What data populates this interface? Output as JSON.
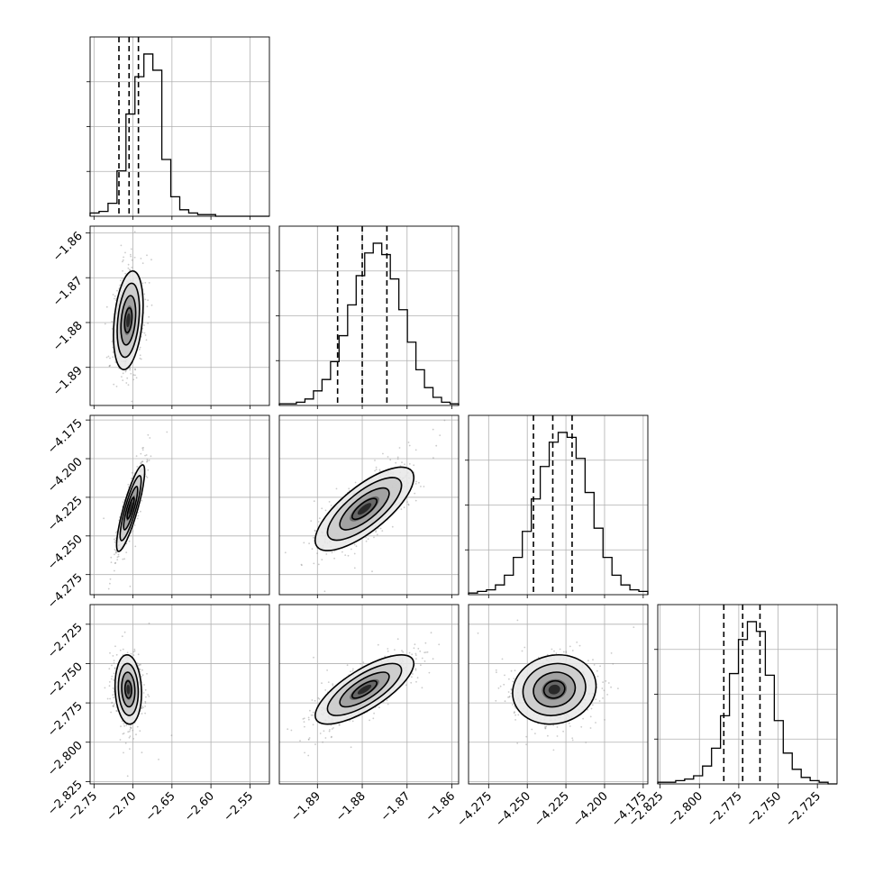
{
  "chart_data": {
    "type": "corner",
    "variables": [
      {
        "range": [
          -2.755,
          -2.525
        ],
        "ticks": [
          -2.75,
          -2.7,
          -2.65,
          -2.6,
          -2.55
        ],
        "tick_labels": [
          "−2.75",
          "−2.70",
          "−2.65",
          "−2.60",
          "−2.55"
        ],
        "quantiles": [
          -2.718,
          -2.705,
          -2.693
        ]
      },
      {
        "range": [
          -1.8985,
          -1.8585
        ],
        "ticks": [
          -1.89,
          -1.88,
          -1.87,
          -1.86
        ],
        "tick_labels": [
          "−1.89",
          "−1.88",
          "−1.87",
          "−1.86"
        ],
        "quantiles": [
          -1.8855,
          -1.88,
          -1.8745
        ]
      },
      {
        "range": [
          -4.288,
          -4.172
        ],
        "ticks": [
          -4.275,
          -4.25,
          -4.225,
          -4.2,
          -4.175
        ],
        "tick_labels": [
          "−4.275",
          "−4.250",
          "−4.225",
          "−4.200",
          "−4.175"
        ],
        "quantiles": [
          -4.246,
          -4.2335,
          -4.221
        ]
      },
      {
        "range": [
          -2.8265,
          -2.7125
        ],
        "ticks": [
          -2.825,
          -2.8,
          -2.775,
          -2.75,
          -2.725
        ],
        "tick_labels": [
          "−2.825",
          "−2.800",
          "−2.775",
          "−2.750",
          "−2.725"
        ],
        "quantiles": [
          -2.7845,
          -2.7725,
          -2.7615
        ]
      }
    ],
    "histograms": [
      [
        0.02,
        0.03,
        0.08,
        0.28,
        0.63,
        0.86,
        1.0,
        0.9,
        0.35,
        0.12,
        0.04,
        0.02,
        0.01,
        0.01,
        0,
        0,
        0,
        0,
        0,
        0
      ],
      [
        0.01,
        0.01,
        0.02,
        0.04,
        0.09,
        0.16,
        0.27,
        0.43,
        0.62,
        0.8,
        0.94,
        1.0,
        0.93,
        0.78,
        0.59,
        0.39,
        0.22,
        0.11,
        0.05,
        0.02,
        0.01
      ],
      [
        0.01,
        0.02,
        0.03,
        0.06,
        0.12,
        0.23,
        0.39,
        0.59,
        0.79,
        0.94,
        1.0,
        0.97,
        0.84,
        0.63,
        0.41,
        0.23,
        0.12,
        0.06,
        0.03,
        0.02
      ],
      [
        0.01,
        0.01,
        0.02,
        0.03,
        0.05,
        0.11,
        0.22,
        0.42,
        0.68,
        0.89,
        1.0,
        0.94,
        0.67,
        0.39,
        0.19,
        0.09,
        0.04,
        0.02,
        0.01,
        0
      ]
    ],
    "pairs": [
      {
        "x": 0,
        "y": 1,
        "mean": [
          -2.706,
          -1.8795
        ],
        "sigma": [
          0.0095,
          0.0055
        ],
        "rho": 0.3
      },
      {
        "x": 0,
        "y": 2,
        "mean": [
          -2.703,
          -4.232
        ],
        "sigma": [
          0.009,
          0.014
        ],
        "rho": 0.85
      },
      {
        "x": 1,
        "y": 2,
        "mean": [
          -1.8795,
          -4.2325
        ],
        "sigma": [
          0.0055,
          0.0135
        ],
        "rho": 0.75
      },
      {
        "x": 0,
        "y": 3,
        "mean": [
          -2.706,
          -2.7665
        ],
        "sigma": [
          0.0085,
          0.011
        ],
        "rho": -0.1
      },
      {
        "x": 1,
        "y": 3,
        "mean": [
          -1.8795,
          -2.7665
        ],
        "sigma": [
          0.0055,
          0.011
        ],
        "rho": 0.75
      },
      {
        "x": 2,
        "y": 3,
        "mean": [
          -4.2325,
          -2.7665
        ],
        "sigma": [
          0.0135,
          0.011
        ],
        "rho": 0.1
      }
    ],
    "grid": true
  }
}
